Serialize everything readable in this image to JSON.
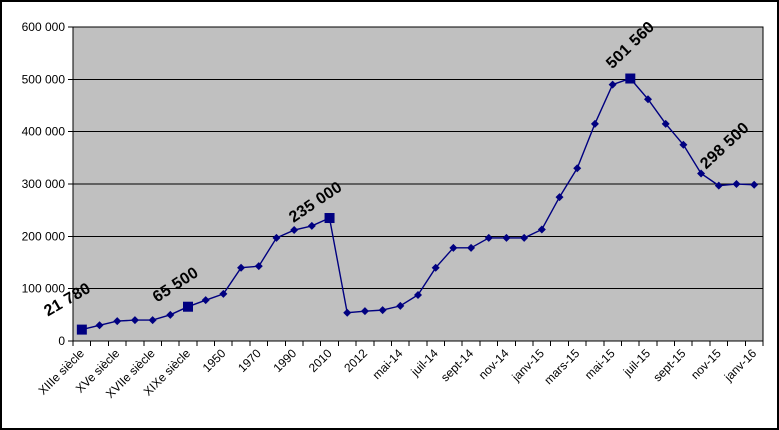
{
  "chart_data": {
    "type": "line",
    "title": "",
    "legend": "none",
    "grid": "horizontal",
    "ylim": [
      0,
      600000
    ],
    "y_ticks": [
      "0",
      "100 000",
      "200 000",
      "300 000",
      "400 000",
      "500 000",
      "600 000"
    ],
    "categories": [
      "XIIIe siècle",
      "",
      "XVe siècle",
      "",
      "XVIIe siècle",
      "",
      "XIXe siècle",
      "",
      "1950",
      "",
      "1970",
      "",
      "1990",
      "",
      "2010",
      "",
      "2012",
      "",
      "mai-14",
      "",
      "juil-14",
      "",
      "sept-14",
      "",
      "nov-14",
      "",
      "janv-15",
      "",
      "mars-15",
      "",
      "mai-15",
      "",
      "juil-15",
      "",
      "sept-15",
      "",
      "nov-15",
      "",
      "janv-16"
    ],
    "series": [
      {
        "name": "",
        "values": [
          21780,
          30000,
          38000,
          40000,
          40000,
          50000,
          65500,
          78000,
          90000,
          140000,
          143000,
          197000,
          212000,
          220000,
          235000,
          54000,
          57000,
          59000,
          67000,
          88000,
          140000,
          178000,
          178000,
          197000,
          197000,
          197000,
          213000,
          275000,
          330000,
          415000,
          490000,
          501560,
          462000,
          415000,
          375000,
          320000,
          297000,
          300000,
          298500
        ]
      }
    ],
    "annotations": [
      {
        "index": 0,
        "text": "21 780"
      },
      {
        "index": 6,
        "text": "65 500"
      },
      {
        "index": 14,
        "text": "235 000"
      },
      {
        "index": 31,
        "text": "501 560"
      },
      {
        "index": 38,
        "text": "298 500"
      }
    ],
    "square_marker_indices": [
      0,
      6,
      14,
      31
    ],
    "colors": {
      "line": "#000080",
      "marker": "#000080",
      "plot_bg": "#c0c0c0",
      "grid": "#000000",
      "axis": "#000000",
      "text": "#000000",
      "background": "#ffffff",
      "border": "#000000"
    }
  }
}
